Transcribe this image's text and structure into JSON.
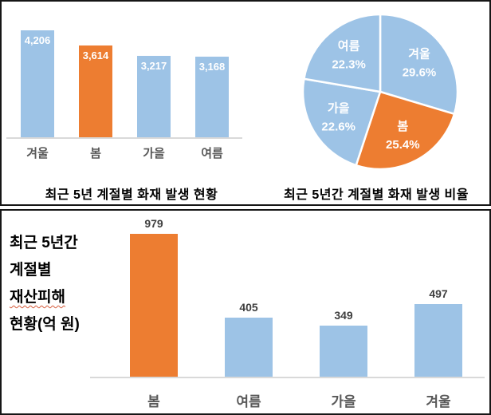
{
  "chart_data": [
    {
      "id": "seasonal-fire-count",
      "type": "bar",
      "title": "최근 5년 계절별 화재 발생 현황",
      "categories": [
        "겨울",
        "봄",
        "가을",
        "여름"
      ],
      "values": [
        4206,
        3614,
        3217,
        3168
      ],
      "value_labels": [
        "4,206",
        "3,614",
        "3,217",
        "3,168"
      ],
      "bar_colors": [
        "#9DC3E6",
        "#ED7D31",
        "#9DC3E6",
        "#9DC3E6"
      ],
      "ylim": [
        0,
        4400
      ],
      "grid": false,
      "legend": "none",
      "value_label_position": "inside-top",
      "value_label_color": "#FFFFFF"
    },
    {
      "id": "seasonal-fire-ratio",
      "type": "pie",
      "title": "최근 5년간 계절별 화재 발생 비율",
      "labels": [
        "겨울",
        "봄",
        "가을",
        "여름"
      ],
      "values": [
        29.6,
        25.4,
        22.6,
        22.3
      ],
      "pct_labels": [
        "29.6%",
        "25.4%",
        "22.6%",
        "22.3%"
      ],
      "colors": [
        "#9DC3E6",
        "#ED7D31",
        "#9DC3E6",
        "#9DC3E6"
      ],
      "start_angle_deg": 0,
      "direction": "clockwise",
      "label_color": "#FFFFFF",
      "legend": "none"
    },
    {
      "id": "seasonal-property-damage",
      "type": "bar",
      "title_lines": [
        "최근 5년간",
        "계절별",
        "재산피해",
        "현황(억 원)"
      ],
      "categories": [
        "봄",
        "여름",
        "가을",
        "겨울"
      ],
      "values": [
        979,
        405,
        349,
        497
      ],
      "value_labels": [
        "979",
        "405",
        "349",
        "497"
      ],
      "bar_colors": [
        "#ED7D31",
        "#9DC3E6",
        "#9DC3E6",
        "#9DC3E6"
      ],
      "ylim": [
        0,
        1130
      ],
      "grid": false,
      "legend": "none",
      "value_label_position": "above",
      "value_label_color": "#3F3F3F"
    }
  ],
  "colors": {
    "bar_blue": "#9DC3E6",
    "bar_orange": "#ED7D31",
    "axis_line": "#D9D9D9",
    "category_label": "#595959",
    "panel_border": "#161616",
    "title_text": "#000000"
  }
}
